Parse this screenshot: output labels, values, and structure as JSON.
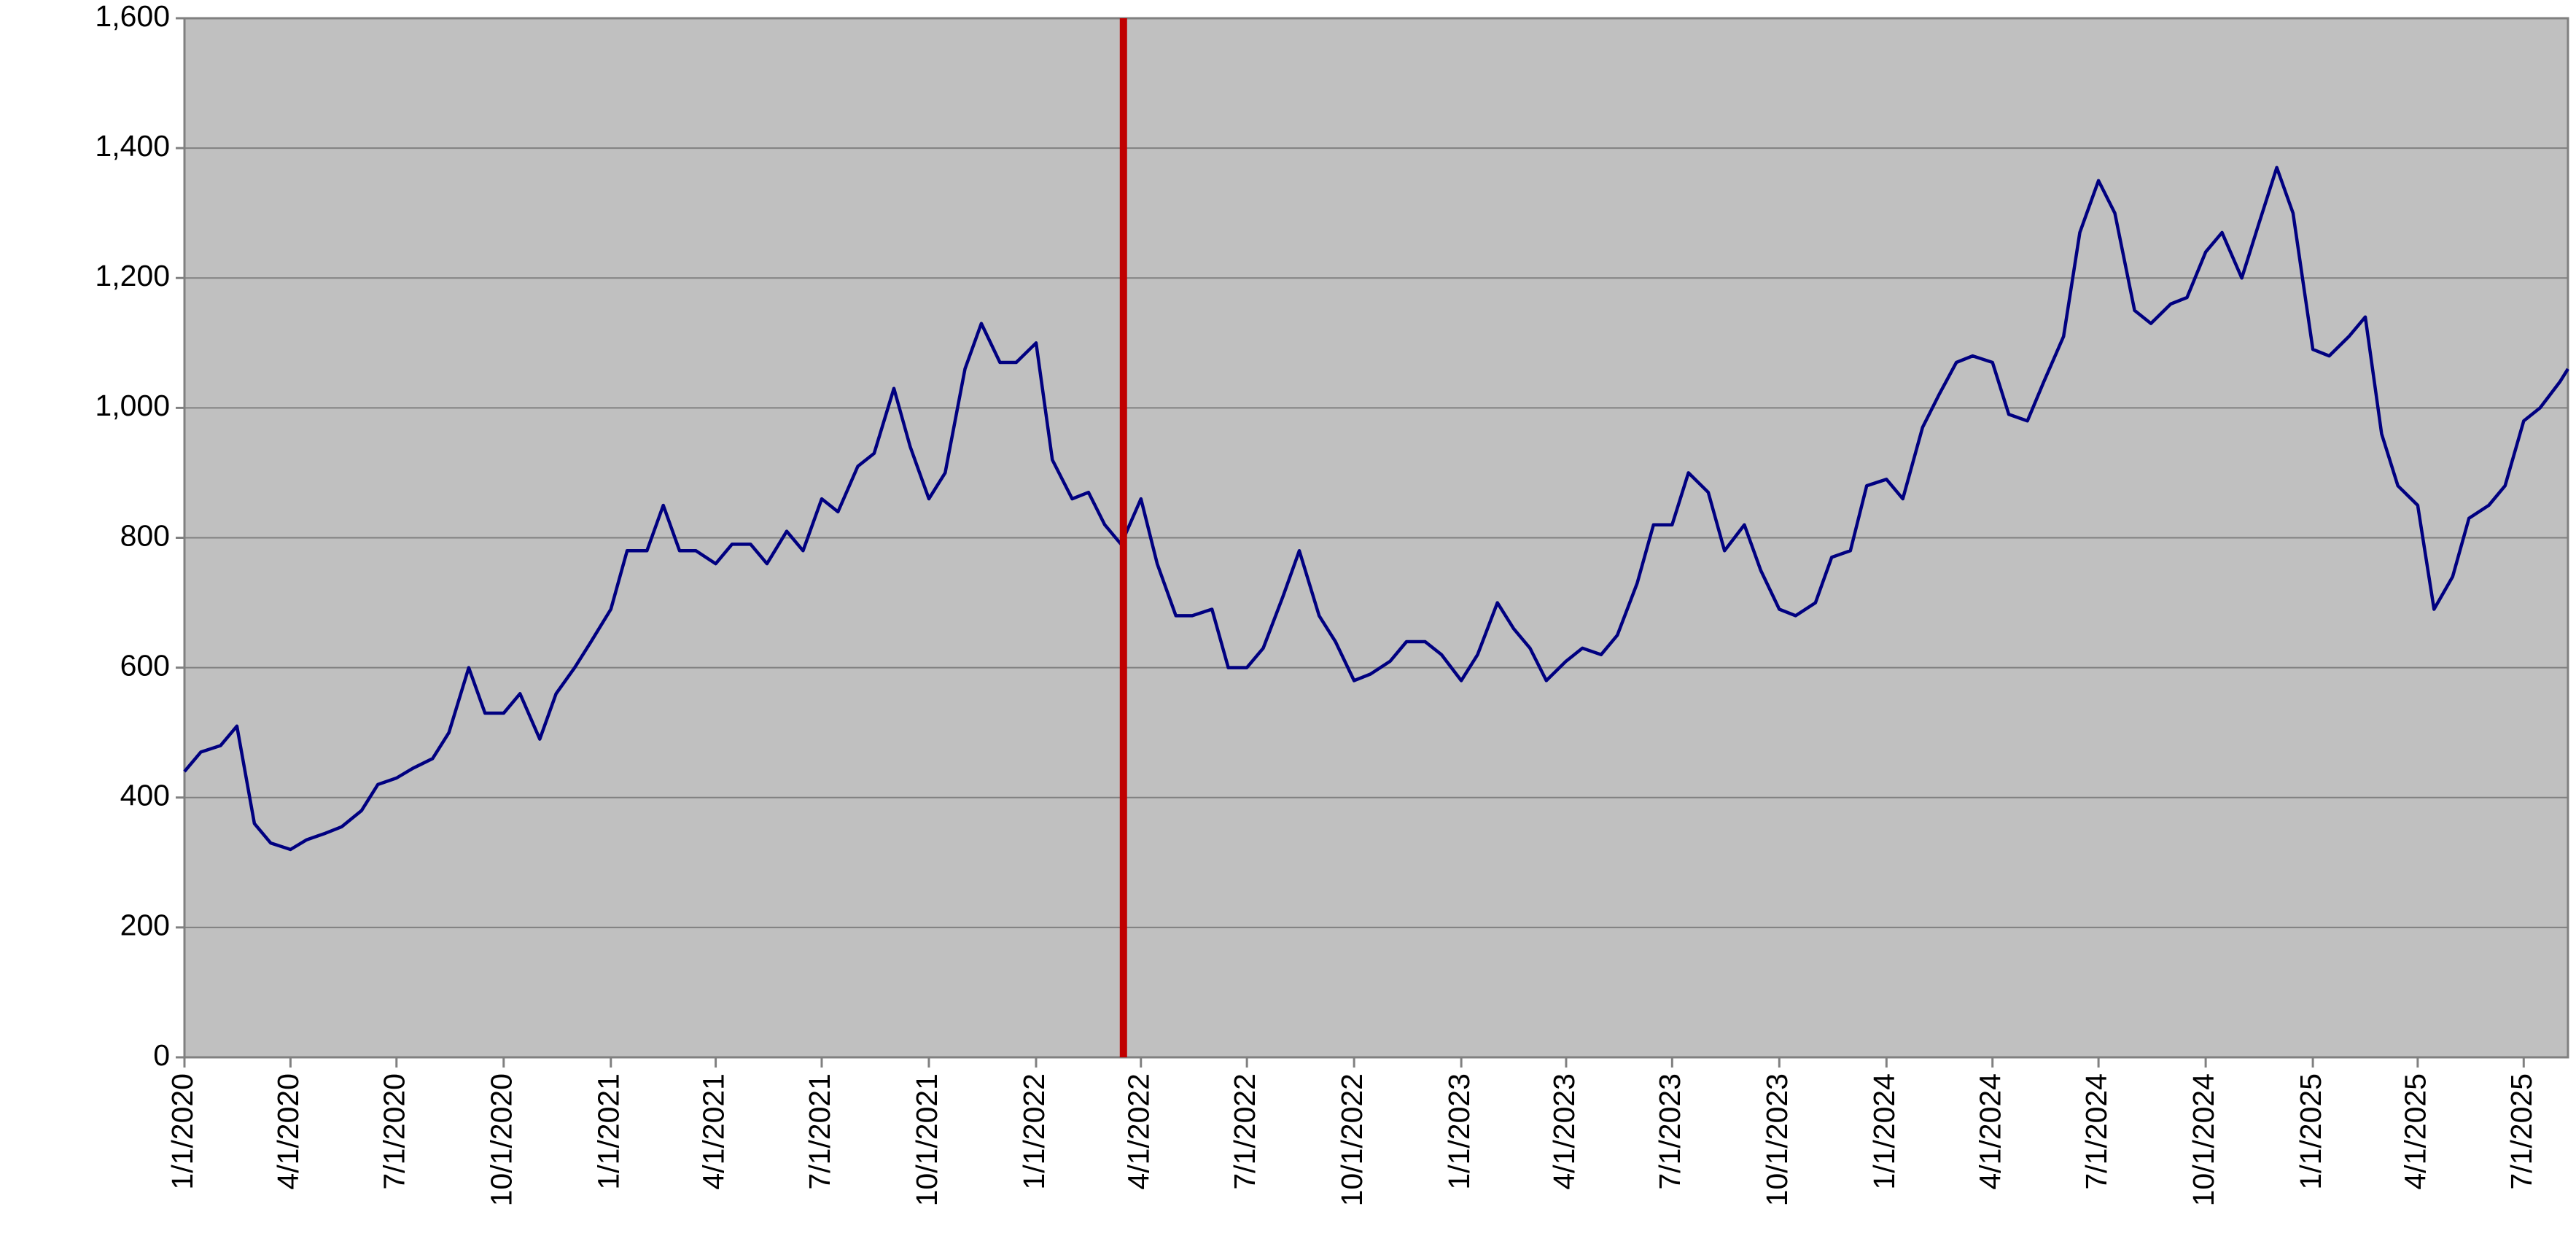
{
  "chart_data": {
    "type": "line",
    "x": [
      "1/1/2020",
      "1/15/2020",
      "2/1/2020",
      "2/15/2020",
      "3/1/2020",
      "3/15/2020",
      "4/1/2020",
      "4/15/2020",
      "5/1/2020",
      "5/15/2020",
      "6/1/2020",
      "6/15/2020",
      "7/1/2020",
      "7/15/2020",
      "8/1/2020",
      "8/15/2020",
      "9/1/2020",
      "9/15/2020",
      "10/1/2020",
      "10/15/2020",
      "11/1/2020",
      "11/15/2020",
      "12/1/2020",
      "12/15/2020",
      "1/1/2021",
      "1/15/2021",
      "2/1/2021",
      "2/15/2021",
      "3/1/2021",
      "3/15/2021",
      "4/1/2021",
      "4/15/2021",
      "5/1/2021",
      "5/15/2021",
      "6/1/2021",
      "6/15/2021",
      "7/1/2021",
      "7/15/2021",
      "8/1/2021",
      "8/15/2021",
      "9/1/2021",
      "9/15/2021",
      "10/1/2021",
      "10/15/2021",
      "11/1/2021",
      "11/15/2021",
      "12/1/2021",
      "12/15/2021",
      "1/1/2022",
      "1/15/2022",
      "2/1/2022",
      "2/15/2022",
      "3/1/2022",
      "3/15/2022",
      "4/1/2022",
      "4/15/2022",
      "5/1/2022",
      "5/15/2022",
      "6/1/2022",
      "6/15/2022",
      "7/1/2022",
      "7/15/2022",
      "8/1/2022",
      "8/15/2022",
      "9/1/2022",
      "9/15/2022",
      "10/1/2022",
      "10/15/2022",
      "11/1/2022",
      "11/15/2022",
      "12/1/2022",
      "12/15/2022",
      "1/1/2023",
      "1/15/2023",
      "2/1/2023",
      "2/15/2023",
      "3/1/2023",
      "3/15/2023",
      "4/1/2023",
      "4/15/2023",
      "5/1/2023",
      "5/15/2023",
      "6/1/2023",
      "6/15/2023",
      "7/1/2023",
      "7/15/2023",
      "8/1/2023",
      "8/15/2023",
      "9/1/2023",
      "9/15/2023",
      "10/1/2023",
      "10/15/2023",
      "11/1/2023",
      "11/15/2023",
      "12/1/2023",
      "12/15/2023",
      "1/1/2024",
      "1/15/2024",
      "2/1/2024",
      "2/15/2024",
      "3/1/2024",
      "3/15/2024",
      "4/1/2024",
      "4/15/2024",
      "5/1/2024",
      "5/15/2024",
      "6/1/2024",
      "6/15/2024",
      "7/1/2024",
      "7/15/2024",
      "8/1/2024",
      "8/15/2024",
      "9/1/2024",
      "9/15/2024",
      "10/1/2024",
      "10/15/2024",
      "11/1/2024",
      "11/15/2024",
      "12/1/2024",
      "12/15/2024",
      "1/1/2025",
      "1/15/2025",
      "2/1/2025",
      "2/15/2025",
      "3/1/2025",
      "3/15/2025",
      "4/1/2025",
      "4/15/2025",
      "5/1/2025",
      "5/15/2025",
      "6/1/2025",
      "6/15/2025",
      "7/1/2025",
      "7/15/2025",
      "8/1/2025",
      "8/8/2025"
    ],
    "series": [
      {
        "color": "#000080",
        "values": [
          440,
          470,
          480,
          510,
          360,
          330,
          320,
          335,
          345,
          355,
          380,
          420,
          430,
          445,
          460,
          500,
          600,
          530,
          530,
          560,
          490,
          560,
          600,
          640,
          690,
          780,
          780,
          850,
          780,
          780,
          760,
          790,
          790,
          760,
          810,
          780,
          860,
          840,
          910,
          930,
          1030,
          940,
          860,
          900,
          1060,
          1130,
          1070,
          1070,
          1100,
          920,
          860,
          870,
          820,
          790,
          860,
          760,
          680,
          680,
          690,
          600,
          600,
          630,
          710,
          780,
          680,
          640,
          580,
          590,
          610,
          640,
          640,
          620,
          580,
          620,
          700,
          660,
          630,
          580,
          610,
          630,
          620,
          650,
          730,
          820,
          820,
          900,
          870,
          780,
          820,
          750,
          690,
          680,
          700,
          770,
          780,
          880,
          890,
          860,
          970,
          1020,
          1070,
          1080,
          1070,
          990,
          980,
          1040,
          1110,
          1270,
          1350,
          1300,
          1150,
          1130,
          1160,
          1170,
          1240,
          1270,
          1200,
          1280,
          1370,
          1300,
          1090,
          1080,
          1110,
          1140,
          960,
          880,
          850,
          690,
          740,
          830,
          850,
          880,
          980,
          1000,
          1040,
          1060
        ]
      }
    ],
    "xlim": [
      "1/1/2020",
      "8/8/2025"
    ],
    "xticks": [
      "1/1/2020",
      "4/1/2020",
      "7/1/2020",
      "10/1/2020",
      "1/1/2021",
      "4/1/2021",
      "7/1/2021",
      "10/1/2021",
      "1/1/2022",
      "4/1/2022",
      "7/1/2022",
      "10/1/2022",
      "1/1/2023",
      "4/1/2023",
      "7/1/2023",
      "10/1/2023",
      "1/1/2024",
      "4/1/2024",
      "7/1/2024",
      "10/1/2024",
      "1/1/2025",
      "4/1/2025",
      "7/1/2025"
    ],
    "ylim": [
      0,
      1600
    ],
    "yticks": [
      0,
      200,
      400,
      600,
      800,
      {
        "value": 1000,
        "label": "1,000"
      },
      {
        "value": 1200,
        "label": "1,200"
      },
      {
        "value": 1400,
        "label": "1,400"
      },
      {
        "value": 1600,
        "label": "1,600"
      }
    ],
    "grid": true,
    "background": "#c0c0c0",
    "vline": {
      "x": "3/17/2022",
      "color": "#c00000"
    }
  }
}
